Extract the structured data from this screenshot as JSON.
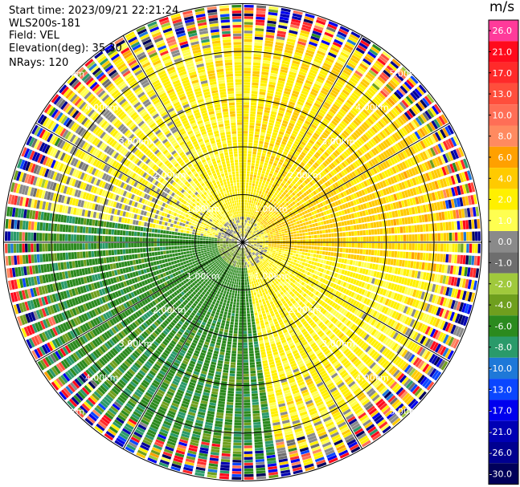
{
  "header": {
    "start_time": "Start time: 2023/09/21 22:21:24",
    "instrument": "WLS200s-181",
    "field": "Field: VEL",
    "elevation": "Elevation(deg): 35.30",
    "nrays": "NRays: 120"
  },
  "colorbar": {
    "unit": "m/s",
    "levels": [
      {
        "label": "26.0",
        "color": "#ff3a9a"
      },
      {
        "label": "21.0",
        "color": "#ff0a1c"
      },
      {
        "label": "17.0",
        "color": "#ff2a2a"
      },
      {
        "label": "13.0",
        "color": "#ff4e3c"
      },
      {
        "label": "10.0",
        "color": "#ff6e56"
      },
      {
        "label": "8.0",
        "color": "#ff8a60"
      },
      {
        "label": "6.0",
        "color": "#ffa000"
      },
      {
        "label": "4.0",
        "color": "#ffca00"
      },
      {
        "label": "2.0",
        "color": "#fff000"
      },
      {
        "label": "1.0",
        "color": "#ffff50"
      },
      {
        "label": "0.0",
        "color": "#8a8a8a"
      },
      {
        "label": "-1.0",
        "color": "#6e6e6e"
      },
      {
        "label": "-2.0",
        "color": "#a0c93c"
      },
      {
        "label": "-4.0",
        "color": "#6f9f1e"
      },
      {
        "label": "-6.0",
        "color": "#2b8a1e"
      },
      {
        "label": "-8.0",
        "color": "#2a9a6a"
      },
      {
        "label": "-10.0",
        "color": "#1e78d8"
      },
      {
        "label": "-13.0",
        "color": "#0a46ff"
      },
      {
        "label": "-17.0",
        "color": "#0000ee"
      },
      {
        "label": "-21.0",
        "color": "#0000b4"
      },
      {
        "label": "-26.0",
        "color": "#000090"
      },
      {
        "label": "-30.0",
        "color": "#00005a"
      }
    ]
  },
  "chart_data": {
    "type": "heatmap",
    "projection": "polar-ppi",
    "field": "VEL",
    "units": "m/s",
    "elevation_deg": 35.3,
    "n_rays": 120,
    "range_rings_km": [
      1.0,
      2.0,
      3.0,
      4.0,
      5.0
    ],
    "range_ring_labels": [
      "1.00km",
      "2.00km",
      "3.00km",
      "4.00km",
      "5.00km"
    ],
    "max_range_km": 5.0,
    "azimuth_spokes_deg": [
      0,
      30,
      60,
      90,
      120,
      150,
      180,
      210,
      240,
      270,
      300,
      330
    ],
    "velocity_pattern": {
      "description_sectors": [
        {
          "azimuth_from": 280,
          "azimuth_to": 100,
          "dominant_vel_ms": 3.0
        },
        {
          "azimuth_from": 100,
          "azimuth_to": 170,
          "dominant_vel_ms": 2.0
        },
        {
          "azimuth_from": 170,
          "azimuth_to": 280,
          "dominant_vel_ms": -5.0
        }
      ],
      "near_range_km": 0.5,
      "far_range_noise_km": 4.2
    },
    "grid": true
  }
}
